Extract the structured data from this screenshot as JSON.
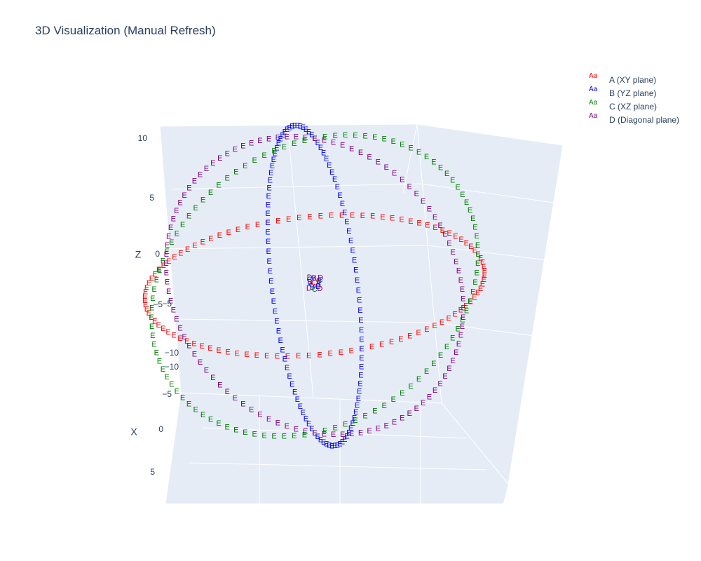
{
  "chart_data": {
    "type": "scatter3d",
    "title": "3D Visualization (Manual Refresh)",
    "marker_text": "E",
    "grid": true,
    "legend_position": "top-right",
    "background_color": "#e5ecf6",
    "axes": {
      "x": {
        "title": "X",
        "range": [
          -10,
          10
        ],
        "tick_labels": [
          "−10",
          "−5",
          "0",
          "5"
        ]
      },
      "y": {
        "title": "",
        "range": [
          -10,
          10
        ],
        "tick_labels": [
          "−10",
          "−5"
        ]
      },
      "z": {
        "title": "Z",
        "range": [
          -10,
          10
        ],
        "tick_labels": [
          "10",
          "5",
          "0",
          "−5"
        ]
      }
    },
    "series": [
      {
        "name": "A (XY plane)",
        "color": "#ff0000",
        "shape": "circle of radius 10 in the XY plane",
        "center_labels": [
          "A",
          "A",
          "A",
          "A"
        ]
      },
      {
        "name": "B (YZ plane)",
        "color": "#0000ff",
        "shape": "circle of radius 10 in the YZ plane",
        "center_labels": [
          "B",
          "B",
          "B",
          "B",
          "B"
        ]
      },
      {
        "name": "C (XZ plane)",
        "color": "#008000",
        "shape": "circle of radius 10 in the XZ plane",
        "center_labels": [
          "C",
          "C",
          "C"
        ]
      },
      {
        "name": "D (Diagonal plane)",
        "color": "#800080",
        "shape": "circle of radius 10 in a diagonal plane",
        "center_labels": [
          "D",
          "D",
          "D",
          "D"
        ]
      }
    ]
  },
  "legend": {
    "swatch_text": "Aa"
  }
}
